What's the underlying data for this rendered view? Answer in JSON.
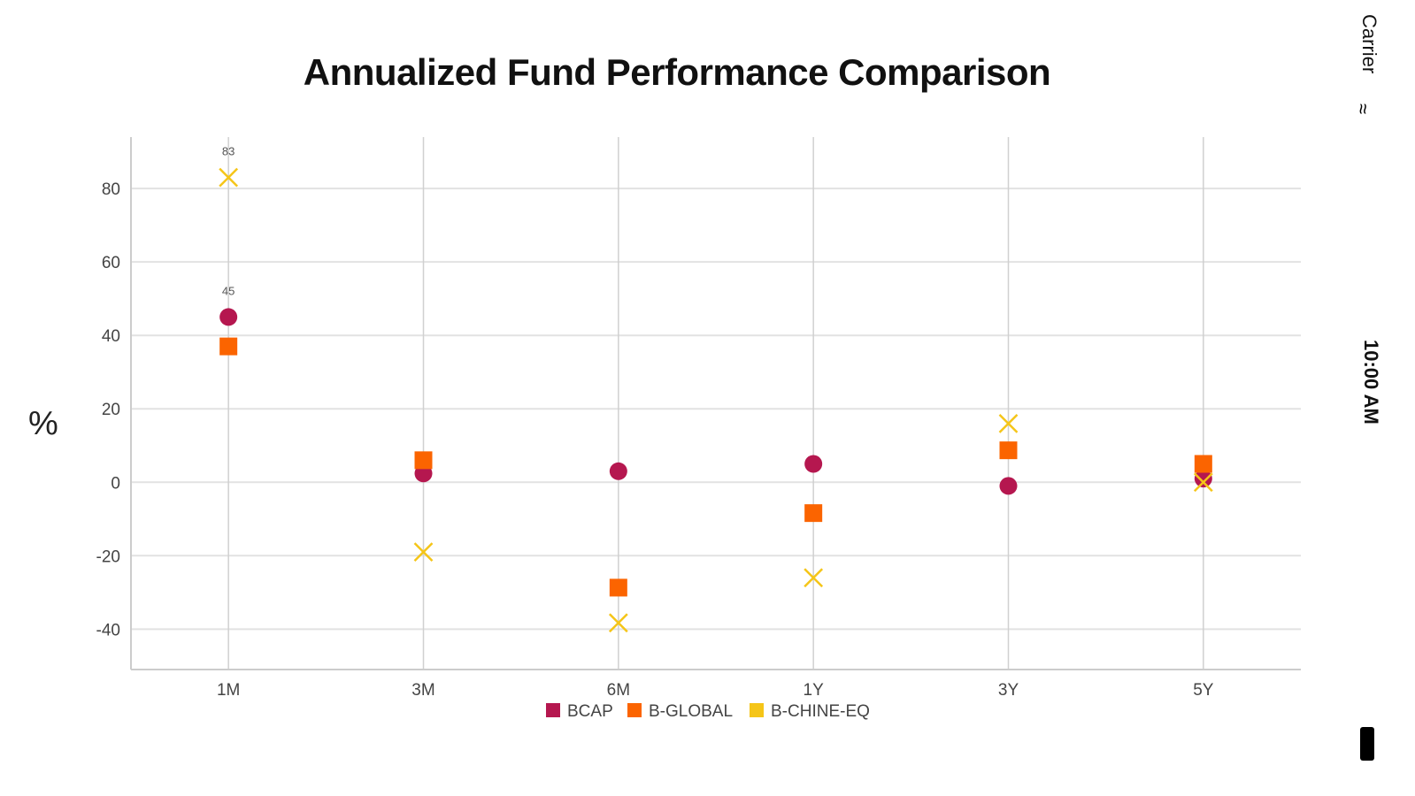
{
  "status_bar": {
    "carrier": "Carrier",
    "time": "10:00 AM"
  },
  "chart_data": {
    "type": "scatter",
    "title": "Annualized Fund Performance Comparison",
    "xlabel": "",
    "ylabel": "%",
    "categories": [
      "1M",
      "3M",
      "6M",
      "1Y",
      "3Y",
      "5Y"
    ],
    "ylim": [
      -51,
      94
    ],
    "yticks": [
      -40,
      -20,
      0,
      20,
      40,
      60,
      80
    ],
    "grid": true,
    "legend_position": "bottom",
    "series": [
      {
        "name": "BCAP",
        "marker": "circle",
        "color": "#b5174f",
        "values": [
          45,
          2.4,
          3,
          5,
          -1,
          1
        ],
        "labels": [
          "45",
          null,
          null,
          null,
          null,
          null
        ]
      },
      {
        "name": "B-GLOBAL",
        "marker": "square",
        "color": "#fb6400",
        "values": [
          37,
          6,
          -28.7,
          -8.4,
          8.7,
          5
        ],
        "labels": [
          null,
          null,
          null,
          null,
          null,
          null
        ]
      },
      {
        "name": "B-CHINE-EQ",
        "marker": "cross",
        "color": "#f5c518",
        "values": [
          83,
          -19,
          -38.3,
          -26,
          16,
          0
        ],
        "labels": [
          "83",
          null,
          null,
          null,
          null,
          null
        ]
      }
    ]
  }
}
